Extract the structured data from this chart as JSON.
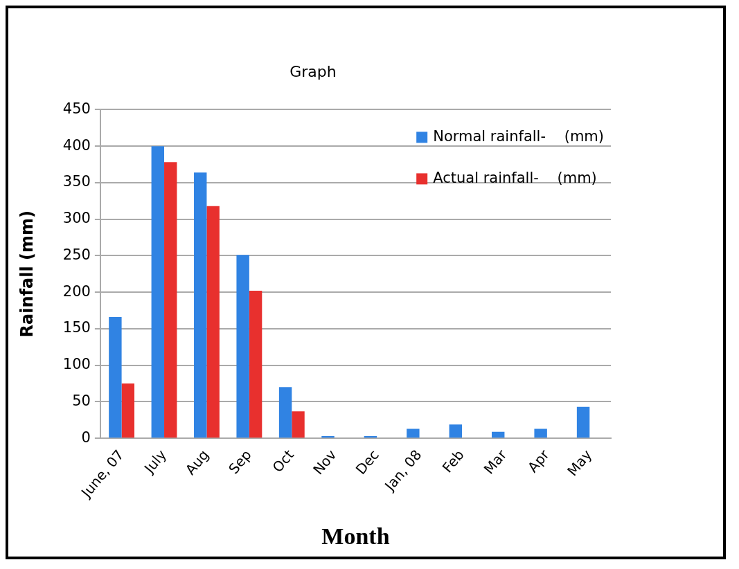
{
  "chart_data": {
    "type": "bar",
    "title": "Graph",
    "xlabel": "Month",
    "ylabel": "Rainfall (mm)",
    "categories": [
      "June, 07",
      "July",
      "Aug",
      "Sep",
      "Oct",
      "Nov",
      "Dec",
      "Jan, 08",
      "Feb",
      "Mar",
      "Apr",
      "May"
    ],
    "series": [
      {
        "name": "Normal rainfall-    (mm)",
        "color": "#3083e3",
        "values": [
          166,
          400,
          364,
          251,
          70,
          3,
          3,
          13,
          19,
          9,
          13,
          43
        ]
      },
      {
        "name": "Actual rainfall-    (mm)",
        "color": "#e8302e",
        "values": [
          75,
          378,
          318,
          202,
          37,
          0,
          0,
          0,
          0,
          0,
          0,
          0
        ]
      }
    ],
    "ylim": [
      0,
      450
    ],
    "yticks": [
      0,
      50,
      100,
      150,
      200,
      250,
      300,
      350,
      400,
      450
    ],
    "grid": "y",
    "legend": "top right"
  }
}
